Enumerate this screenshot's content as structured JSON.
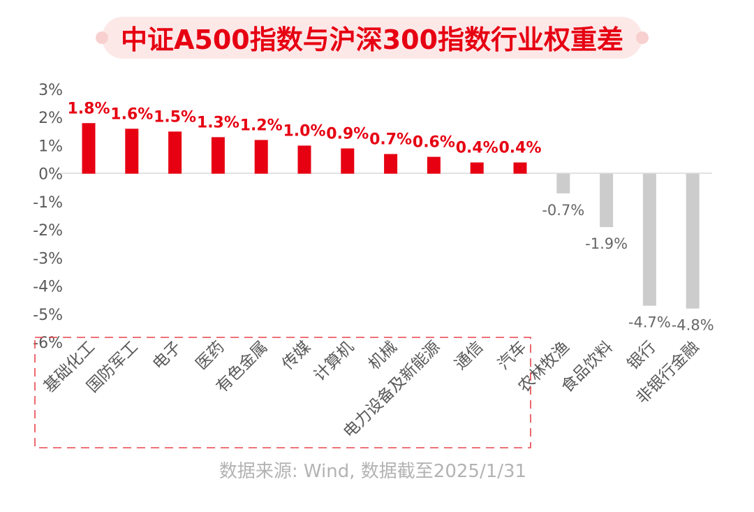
{
  "chart_data": {
    "type": "bar",
    "title": "中证A500指数与沪深300指数行业权重差",
    "source": "数据来源: Wind, 数据截至2025/1/31",
    "ylim": [
      -6,
      3
    ],
    "y_ticks": [
      "3%",
      "2%",
      "1%",
      "0%",
      "-1%",
      "-2%",
      "-3%",
      "-4%",
      "-5%",
      "-6%"
    ],
    "grid": false,
    "categories": [
      "基础化工",
      "国防军工",
      "电子",
      "医药",
      "有色金属",
      "传媒",
      "计算机",
      "机械",
      "电力设备及新能源",
      "通信",
      "汽车",
      "农林牧渔",
      "食品饮料",
      "银行",
      "非银行金融"
    ],
    "values": [
      1.8,
      1.6,
      1.5,
      1.3,
      1.2,
      1.0,
      0.9,
      0.7,
      0.6,
      0.4,
      0.4,
      -0.7,
      -1.9,
      -4.7,
      -4.8
    ],
    "value_labels": [
      "1.8%",
      "1.6%",
      "1.5%",
      "1.3%",
      "1.2%",
      "1.0%",
      "0.9%",
      "0.7%",
      "0.6%",
      "0.4%",
      "0.4%",
      "-0.7%",
      "-1.9%",
      "-4.7%",
      "-4.8%"
    ],
    "highlight_count": 11,
    "colors": {
      "positive": "#e60012",
      "negative": "#cccccc",
      "title_bg": "#fde8e8",
      "title_text": "#e60012",
      "axis_text": "#595959",
      "negative_label": "#666666",
      "source_text": "#b3b3b3",
      "highlight_box": "#e8434a"
    }
  }
}
